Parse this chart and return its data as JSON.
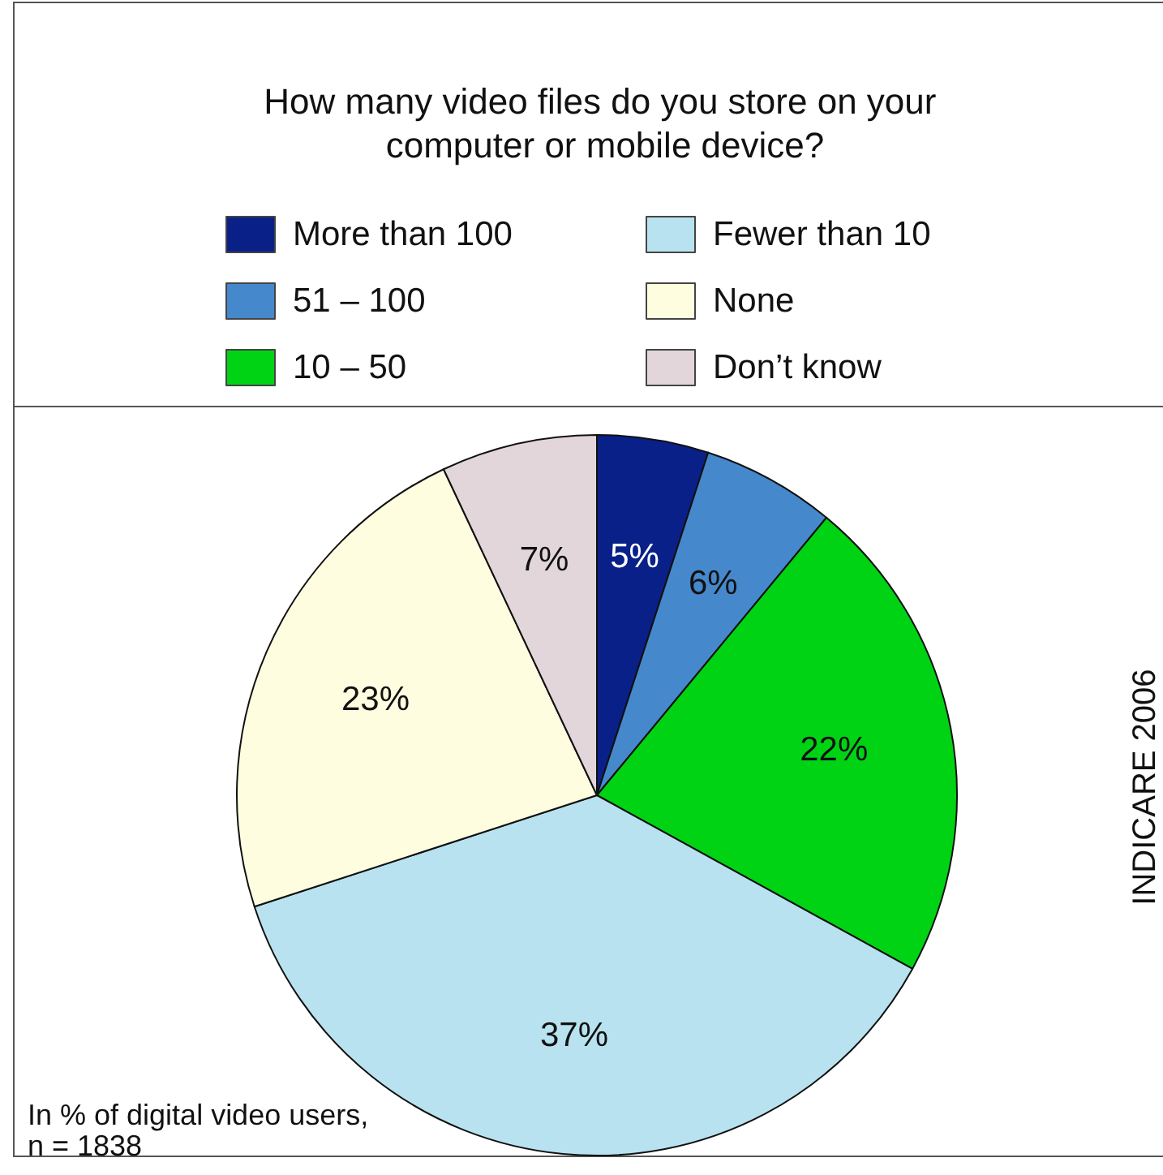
{
  "chart_data": {
    "type": "pie",
    "title": "How many video files do you store on your computer or mobile device?",
    "categories": [
      "More than 100",
      "51 – 100",
      "10 – 50",
      "Fewer than 10",
      "None",
      "Don’t know"
    ],
    "values": [
      5,
      6,
      22,
      37,
      23,
      7
    ],
    "colors": [
      "#0a2089",
      "#4688cc",
      "#00d314",
      "#b8e2ef",
      "#fffde0",
      "#e2d6da"
    ],
    "value_labels": [
      "5%",
      "6%",
      "22%",
      "37%",
      "23%",
      "7%"
    ],
    "legend": "top",
    "annotations": [
      "In % of digital video users, n = 1838",
      "INDICARE 2006"
    ]
  }
}
